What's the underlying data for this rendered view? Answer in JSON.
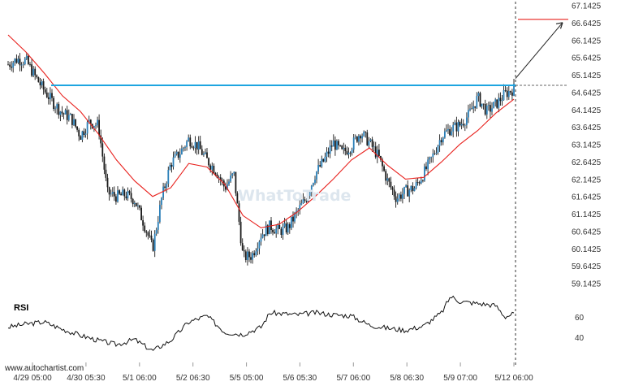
{
  "chart_data": {
    "type": "candlestick",
    "y_ticks": [
      "67.1425",
      "66.6425",
      "66.1425",
      "65.6425",
      "65.1425",
      "64.6425",
      "64.1425",
      "63.6425",
      "63.1425",
      "62.6425",
      "62.1425",
      "61.6425",
      "61.1425",
      "60.6425",
      "60.1425",
      "59.6425",
      "59.1425"
    ],
    "ylim": [
      58.95,
      67.25
    ],
    "x_ticks": [
      "4/29 05:00",
      "4/30 05:30",
      "5/1 06:00",
      "5/2 06:30",
      "5/5 05:00",
      "5/6 05:30",
      "5/7 06:00",
      "5/8 06:30",
      "5/9 07:00",
      "5/12 06:00"
    ],
    "price_path": [
      [
        0,
        65.45
      ],
      [
        2,
        65.6
      ],
      [
        4,
        65.55
      ],
      [
        6,
        65.1
      ],
      [
        8,
        64.7
      ],
      [
        10,
        64.35
      ],
      [
        12,
        64.05
      ],
      [
        14,
        63.9
      ],
      [
        16,
        63.4
      ],
      [
        18,
        63.8
      ],
      [
        20,
        63.7
      ],
      [
        22,
        61.75
      ],
      [
        24,
        61.65
      ],
      [
        26,
        61.7
      ],
      [
        28,
        61.55
      ],
      [
        30,
        60.9
      ],
      [
        32,
        60.15
      ],
      [
        34,
        61.6
      ],
      [
        36,
        62.6
      ],
      [
        38,
        62.9
      ],
      [
        40,
        63.3
      ],
      [
        42,
        63.1
      ],
      [
        44,
        62.7
      ],
      [
        46,
        62.4
      ],
      [
        48,
        61.9
      ],
      [
        50,
        62.3
      ],
      [
        52,
        59.9
      ],
      [
        54,
        59.95
      ],
      [
        56,
        60.55
      ],
      [
        58,
        60.8
      ],
      [
        60,
        60.65
      ],
      [
        62,
        60.75
      ],
      [
        64,
        61.2
      ],
      [
        66,
        61.6
      ],
      [
        68,
        62.3
      ],
      [
        70,
        62.7
      ],
      [
        72,
        63.2
      ],
      [
        74,
        62.9
      ],
      [
        76,
        63.1
      ],
      [
        78,
        63.5
      ],
      [
        80,
        63.2
      ],
      [
        82,
        62.8
      ],
      [
        84,
        62.1
      ],
      [
        86,
        61.6
      ],
      [
        88,
        61.8
      ],
      [
        90,
        61.9
      ],
      [
        92,
        62.3
      ],
      [
        94,
        62.8
      ],
      [
        96,
        63.4
      ],
      [
        98,
        63.6
      ],
      [
        100,
        63.7
      ],
      [
        102,
        64.0
      ],
      [
        104,
        64.5
      ],
      [
        106,
        64.1
      ],
      [
        108,
        64.3
      ],
      [
        110,
        64.6
      ],
      [
        112,
        64.75
      ]
    ],
    "moving_average": [
      [
        0,
        66.3
      ],
      [
        4,
        65.8
      ],
      [
        8,
        65.2
      ],
      [
        12,
        64.55
      ],
      [
        16,
        64.1
      ],
      [
        20,
        63.45
      ],
      [
        24,
        62.7
      ],
      [
        28,
        62.1
      ],
      [
        32,
        61.65
      ],
      [
        36,
        61.9
      ],
      [
        40,
        62.6
      ],
      [
        44,
        62.5
      ],
      [
        48,
        62.0
      ],
      [
        52,
        61.1
      ],
      [
        56,
        60.75
      ],
      [
        60,
        60.85
      ],
      [
        64,
        61.2
      ],
      [
        68,
        61.65
      ],
      [
        72,
        62.15
      ],
      [
        76,
        62.7
      ],
      [
        80,
        63.05
      ],
      [
        84,
        62.55
      ],
      [
        88,
        62.15
      ],
      [
        92,
        62.2
      ],
      [
        96,
        62.65
      ],
      [
        100,
        63.15
      ],
      [
        104,
        63.55
      ],
      [
        108,
        64.05
      ],
      [
        112,
        64.45
      ]
    ],
    "resistance_level": 64.85,
    "forecast": {
      "from": 65.05,
      "to": 66.75
    },
    "rsi": {
      "label": "RSI",
      "ticks": [
        60,
        40
      ],
      "ylim": [
        22,
        82
      ],
      "values": [
        [
          0,
          50
        ],
        [
          4,
          53
        ],
        [
          8,
          55
        ],
        [
          12,
          48
        ],
        [
          16,
          42
        ],
        [
          20,
          37
        ],
        [
          24,
          33
        ],
        [
          28,
          38
        ],
        [
          32,
          27
        ],
        [
          36,
          37
        ],
        [
          40,
          55
        ],
        [
          44,
          61
        ],
        [
          48,
          45
        ],
        [
          52,
          43
        ],
        [
          56,
          50
        ],
        [
          58,
          64
        ],
        [
          64,
          62
        ],
        [
          68,
          64
        ],
        [
          72,
          62
        ],
        [
          76,
          61
        ],
        [
          80,
          52
        ],
        [
          84,
          49
        ],
        [
          88,
          47
        ],
        [
          92,
          51
        ],
        [
          96,
          64
        ],
        [
          98,
          80
        ],
        [
          100,
          75
        ],
        [
          104,
          73
        ],
        [
          108,
          71
        ],
        [
          110,
          60
        ],
        [
          112,
          63
        ]
      ]
    },
    "watermark": "WhatToTrade",
    "credit": "www.autochartist.com"
  }
}
